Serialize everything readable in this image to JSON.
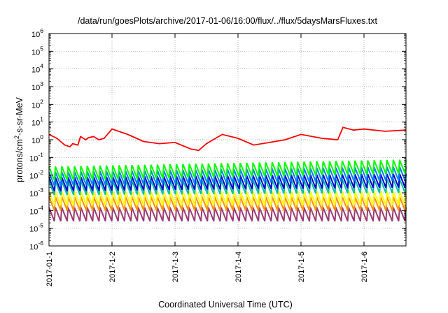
{
  "chart_data": {
    "type": "line",
    "title": "/data/run/goesPlots/archive/2017-01-06/16:00/flux/../flux/5daysMarsFluxes.txt",
    "xlabel": "Coordinated Universal Time (UTC)",
    "ylabel_parts": {
      "base": "protons/cm",
      "sup": "2",
      "rest": "-s-sr-MeV"
    },
    "yscale": "log",
    "ylim": [
      1e-06,
      1000000.0
    ],
    "y_tick_labels": [
      {
        "base": "10",
        "exp": "-6"
      },
      {
        "base": "10",
        "exp": "-5"
      },
      {
        "base": "10",
        "exp": "-4"
      },
      {
        "base": "10",
        "exp": "-3"
      },
      {
        "base": "10",
        "exp": "-2"
      },
      {
        "base": "10",
        "exp": "-1"
      },
      {
        "base": "10",
        "exp": "0"
      },
      {
        "base": "10",
        "exp": "1"
      },
      {
        "base": "10",
        "exp": "2"
      },
      {
        "base": "10",
        "exp": "3"
      },
      {
        "base": "10",
        "exp": "4"
      },
      {
        "base": "10",
        "exp": "5"
      },
      {
        "base": "10",
        "exp": "6"
      }
    ],
    "xlim": [
      "2017-01-01",
      "2017-01-06 16:00"
    ],
    "x_tick_labels": [
      "2017-01-1",
      "2017-1-2",
      "2017-1-3",
      "2017-1-4",
      "2017-1-5",
      "2017-1-6"
    ],
    "grid": true,
    "series": [
      {
        "color": "#ff0000",
        "x": [
          "2017-01-01 00:00",
          "2017-01-01 03:00",
          "2017-01-01 06:00",
          "2017-01-01 08:00",
          "2017-01-01 09:00",
          "2017-01-01 11:00",
          "2017-01-01 12:00",
          "2017-01-01 14:00",
          "2017-01-01 15:00",
          "2017-01-01 17:00",
          "2017-01-01 19:00",
          "2017-01-01 21:00",
          "2017-01-02 00:00",
          "2017-01-02 06:00",
          "2017-01-02 12:00",
          "2017-01-02 18:00",
          "2017-01-03 00:00",
          "2017-01-03 06:00",
          "2017-01-03 09:00",
          "2017-01-03 12:00",
          "2017-01-03 18:00",
          "2017-01-04 00:00",
          "2017-01-04 06:00",
          "2017-01-04 12:00",
          "2017-01-04 18:00",
          "2017-01-05 00:00",
          "2017-01-05 08:00",
          "2017-01-05 14:00",
          "2017-01-05 16:00",
          "2017-01-05 20:00",
          "2017-01-06 00:00",
          "2017-01-06 08:00",
          "2017-01-06 16:00"
        ],
        "values": [
          2,
          1.2,
          0.5,
          0.4,
          0.6,
          0.5,
          1.5,
          1.0,
          1.3,
          1.5,
          1.0,
          1.2,
          4.0,
          2.0,
          0.8,
          0.6,
          0.7,
          0.3,
          0.25,
          0.6,
          2.0,
          1.2,
          0.5,
          0.7,
          1.0,
          2.0,
          1.2,
          1.0,
          5.0,
          3.5,
          4.0,
          3.0,
          3.5
        ]
      },
      {
        "color": "#00ff00",
        "x": [
          "2017-01-01 00:00",
          "2017-01-06 16:00"
        ],
        "values": [
          0.02,
          0.05
        ]
      },
      {
        "color": "#0080ff",
        "x": [
          "2017-01-01 00:00",
          "2017-01-06 16:00"
        ],
        "values": [
          0.01,
          0.02
        ]
      },
      {
        "color": "#0000cc",
        "x": [
          "2017-01-01 00:00",
          "2017-01-06 16:00"
        ],
        "values": [
          0.005,
          0.008
        ]
      },
      {
        "color": "#00c0a0",
        "x": [
          "2017-01-01 00:00",
          "2017-01-06 16:00"
        ],
        "values": [
          0.003,
          0.004
        ]
      },
      {
        "color": "#ffff00",
        "x": [
          "2017-01-01 00:00",
          "2017-01-06 16:00"
        ],
        "values": [
          0.0008,
          0.0008
        ]
      },
      {
        "color": "#ff9000",
        "x": [
          "2017-01-01 00:00",
          "2017-01-06 16:00"
        ],
        "values": [
          0.0004,
          0.0004
        ]
      },
      {
        "color": "#9a3c72",
        "x": [
          "2017-01-01 00:00",
          "2017-01-06 16:00"
        ],
        "values": [
          0.0001,
          0.0001
        ]
      }
    ],
    "sawtooth_cycles": 56
  }
}
